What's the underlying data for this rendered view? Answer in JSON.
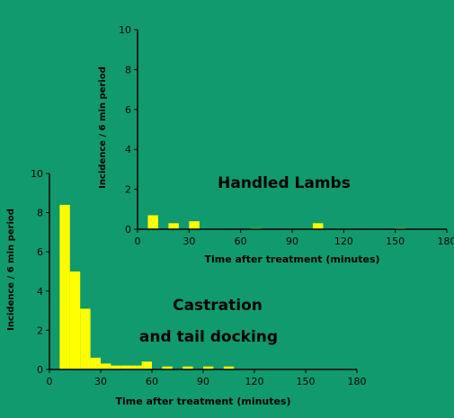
{
  "colors": {
    "background": "#109a6e",
    "bar": "#ffff00",
    "axis": "#000000"
  },
  "chart_data": [
    {
      "type": "bar",
      "title": "",
      "annotation": "Handled Lambs",
      "xlabel": "Time after treatment (minutes)",
      "ylabel": "Incidence / 6 min period",
      "xlim": [
        0,
        180
      ],
      "ylim": [
        0,
        10
      ],
      "xticks": [
        0,
        30,
        60,
        90,
        120,
        150,
        180
      ],
      "yticks": [
        0,
        2,
        4,
        6,
        8,
        10
      ],
      "bin_width": 6,
      "bins": [
        {
          "x": 6,
          "value": 0.7
        },
        {
          "x": 18,
          "value": 0.3
        },
        {
          "x": 30,
          "value": 0.4
        },
        {
          "x": 66,
          "value": 0.05
        },
        {
          "x": 102,
          "value": 0.3
        },
        {
          "x": 150,
          "value": 0.05
        }
      ]
    },
    {
      "type": "bar",
      "title": "",
      "annotation_lines": [
        "Castration",
        "and  tail docking"
      ],
      "xlabel": "Time after treatment (minutes)",
      "ylabel": "Incidence / 6 min period",
      "xlim": [
        0,
        180
      ],
      "ylim": [
        0,
        10
      ],
      "xticks": [
        0,
        30,
        60,
        90,
        120,
        150,
        180
      ],
      "yticks": [
        0,
        2,
        4,
        6,
        8,
        10
      ],
      "bin_width": 6,
      "bins": [
        {
          "x": 6,
          "value": 8.4
        },
        {
          "x": 12,
          "value": 5.0
        },
        {
          "x": 18,
          "value": 3.1
        },
        {
          "x": 24,
          "value": 0.6
        },
        {
          "x": 30,
          "value": 0.3
        },
        {
          "x": 36,
          "value": 0.2
        },
        {
          "x": 42,
          "value": 0.2
        },
        {
          "x": 48,
          "value": 0.2
        },
        {
          "x": 54,
          "value": 0.4
        },
        {
          "x": 66,
          "value": 0.15
        },
        {
          "x": 78,
          "value": 0.15
        },
        {
          "x": 90,
          "value": 0.15
        },
        {
          "x": 102,
          "value": 0.15
        }
      ]
    }
  ]
}
